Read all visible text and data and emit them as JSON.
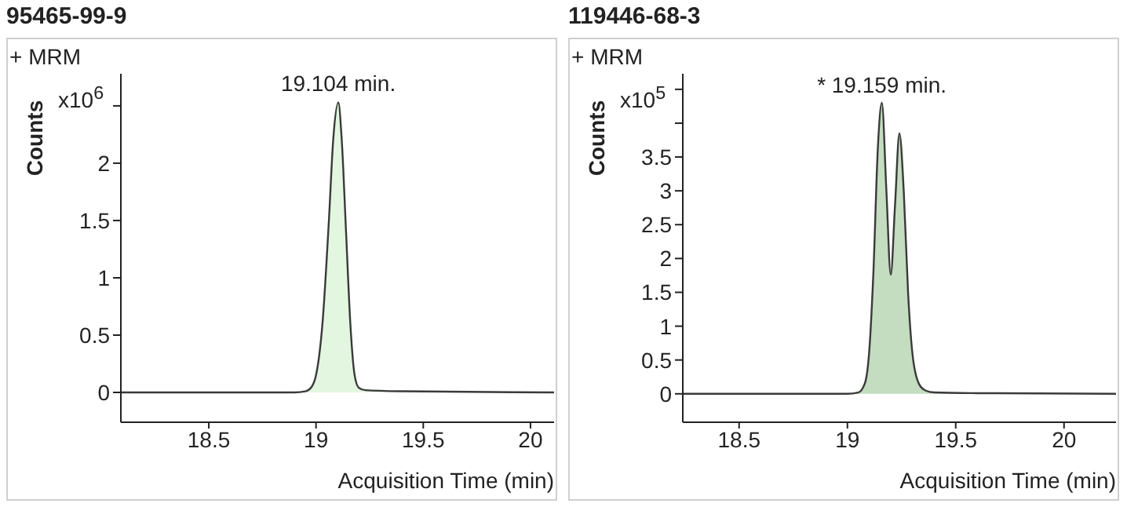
{
  "chart_data": [
    {
      "type": "area",
      "title": "95465-99-9",
      "xlabel": "Acquisition Time (min)",
      "ylabel": "Counts",
      "annotations": [
        "+ MRM",
        "x10$^{6}$",
        {
          "text": "19.104 min.",
          "x": 19.104,
          "y": 2.53
        }
      ],
      "x": [
        18.09,
        18.9,
        18.95,
        18.98,
        19.0,
        19.03,
        19.06,
        19.08,
        19.104,
        19.12,
        19.14,
        19.16,
        19.18,
        19.2,
        19.23,
        19.4,
        20.11
      ],
      "series": [
        {
          "color": "#e3f7e0",
          "values": [
            0,
            0,
            0.01,
            0.05,
            0.15,
            0.6,
            1.5,
            2.2,
            2.53,
            2.2,
            1.4,
            0.6,
            0.15,
            0.04,
            0.02,
            0.01,
            0
          ]
        }
      ],
      "xlim": [
        18.09,
        20.11
      ],
      "xticks": [
        18.5,
        19,
        19.5,
        20
      ],
      "ylim": [
        -0.26,
        2.78
      ],
      "yticks": [
        0,
        0.5,
        1,
        1.5,
        2,
        {
          "value": 2.5,
          "label": null
        }
      ]
    },
    {
      "type": "area",
      "title": "119446-68-3",
      "xlabel": "Acquisition Time (min)",
      "ylabel": "Counts",
      "annotations": [
        "+ MRM",
        "x10$^{5}$",
        {
          "text": "* 19.159 min.",
          "x": 19.159,
          "y": 4.3
        }
      ],
      "x": [
        18.24,
        19.0,
        19.05,
        19.08,
        19.1,
        19.12,
        19.14,
        19.159,
        19.18,
        19.2,
        19.22,
        19.24,
        19.26,
        19.28,
        19.3,
        19.33,
        19.36,
        19.4,
        19.6,
        20.24
      ],
      "series": [
        {
          "color": "#c4dcc0",
          "values": [
            0,
            0,
            0.02,
            0.15,
            0.6,
            1.8,
            3.6,
            4.3,
            3.0,
            1.76,
            2.8,
            3.85,
            3.0,
            1.5,
            0.6,
            0.15,
            0.05,
            0.02,
            0.01,
            0
          ]
        }
      ],
      "xlim": [
        18.24,
        20.24
      ],
      "xticks": [
        18.5,
        19,
        19.5,
        20
      ],
      "ylim": [
        -0.42,
        4.73
      ],
      "yticks": [
        0,
        0.5,
        1,
        1.5,
        2,
        2.5,
        3,
        3.5,
        {
          "value": 4,
          "label": null
        },
        {
          "value": 4.5,
          "label": null
        }
      ]
    }
  ]
}
